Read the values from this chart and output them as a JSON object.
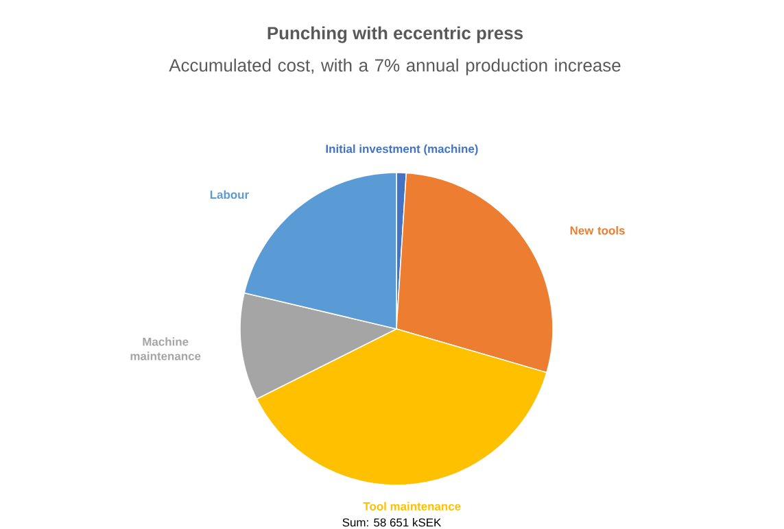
{
  "chart_data": {
    "type": "pie",
    "title": "Punching with eccentric press",
    "subtitle": "Accumulated cost, with a 7% annual production increase",
    "categories": [
      "Initial investment (machine)",
      "New tools",
      "Tool maintenance",
      "Machine maintenance",
      "Labour"
    ],
    "values": [
      1.0,
      28.5,
      38.1,
      11.1,
      21.3
    ],
    "colors": [
      "#4472c4",
      "#ed7d31",
      "#ffc000",
      "#a5a5a5",
      "#5b9bd5"
    ],
    "annotations": [
      "Sum: 58 651 kSEK"
    ]
  }
}
